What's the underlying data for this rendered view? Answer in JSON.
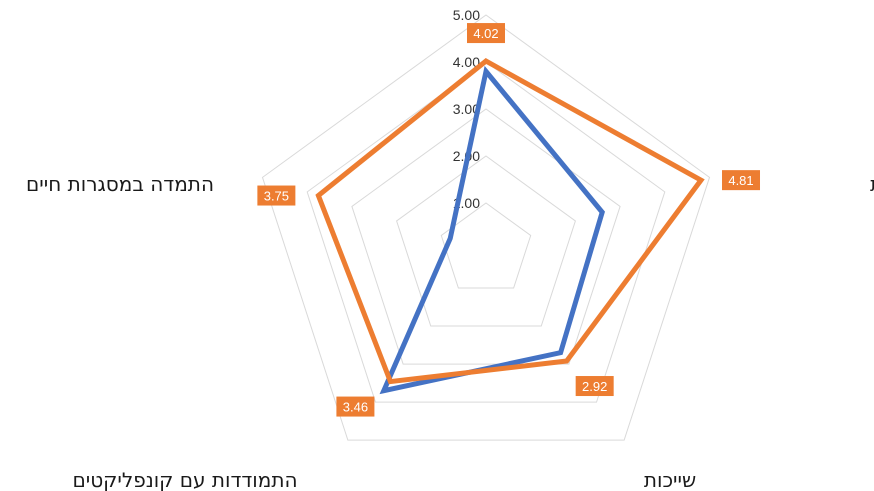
{
  "chart_data": {
    "type": "radar",
    "title": "",
    "categories": [
      "",
      "מסוגלות אישית",
      "שייכות",
      "התמודדות עם קונפליקטים",
      "התמדה במסגרות חיים"
    ],
    "rlim": [
      0,
      5
    ],
    "ticks": [
      "1.00",
      "2.00",
      "3.00",
      "4.00",
      "5.00"
    ],
    "series": [
      {
        "values": [
          3.8,
          2.6,
          2.7,
          3.7,
          0.8
        ],
        "color": "#4472c4"
      },
      {
        "values": [
          4.02,
          4.81,
          2.92,
          3.46,
          3.75
        ],
        "color": "#ed7d31",
        "labels": [
          "4.02",
          "4.81",
          "2.92",
          "3.46",
          "3.75"
        ]
      }
    ],
    "grid": true,
    "legend": "none"
  }
}
